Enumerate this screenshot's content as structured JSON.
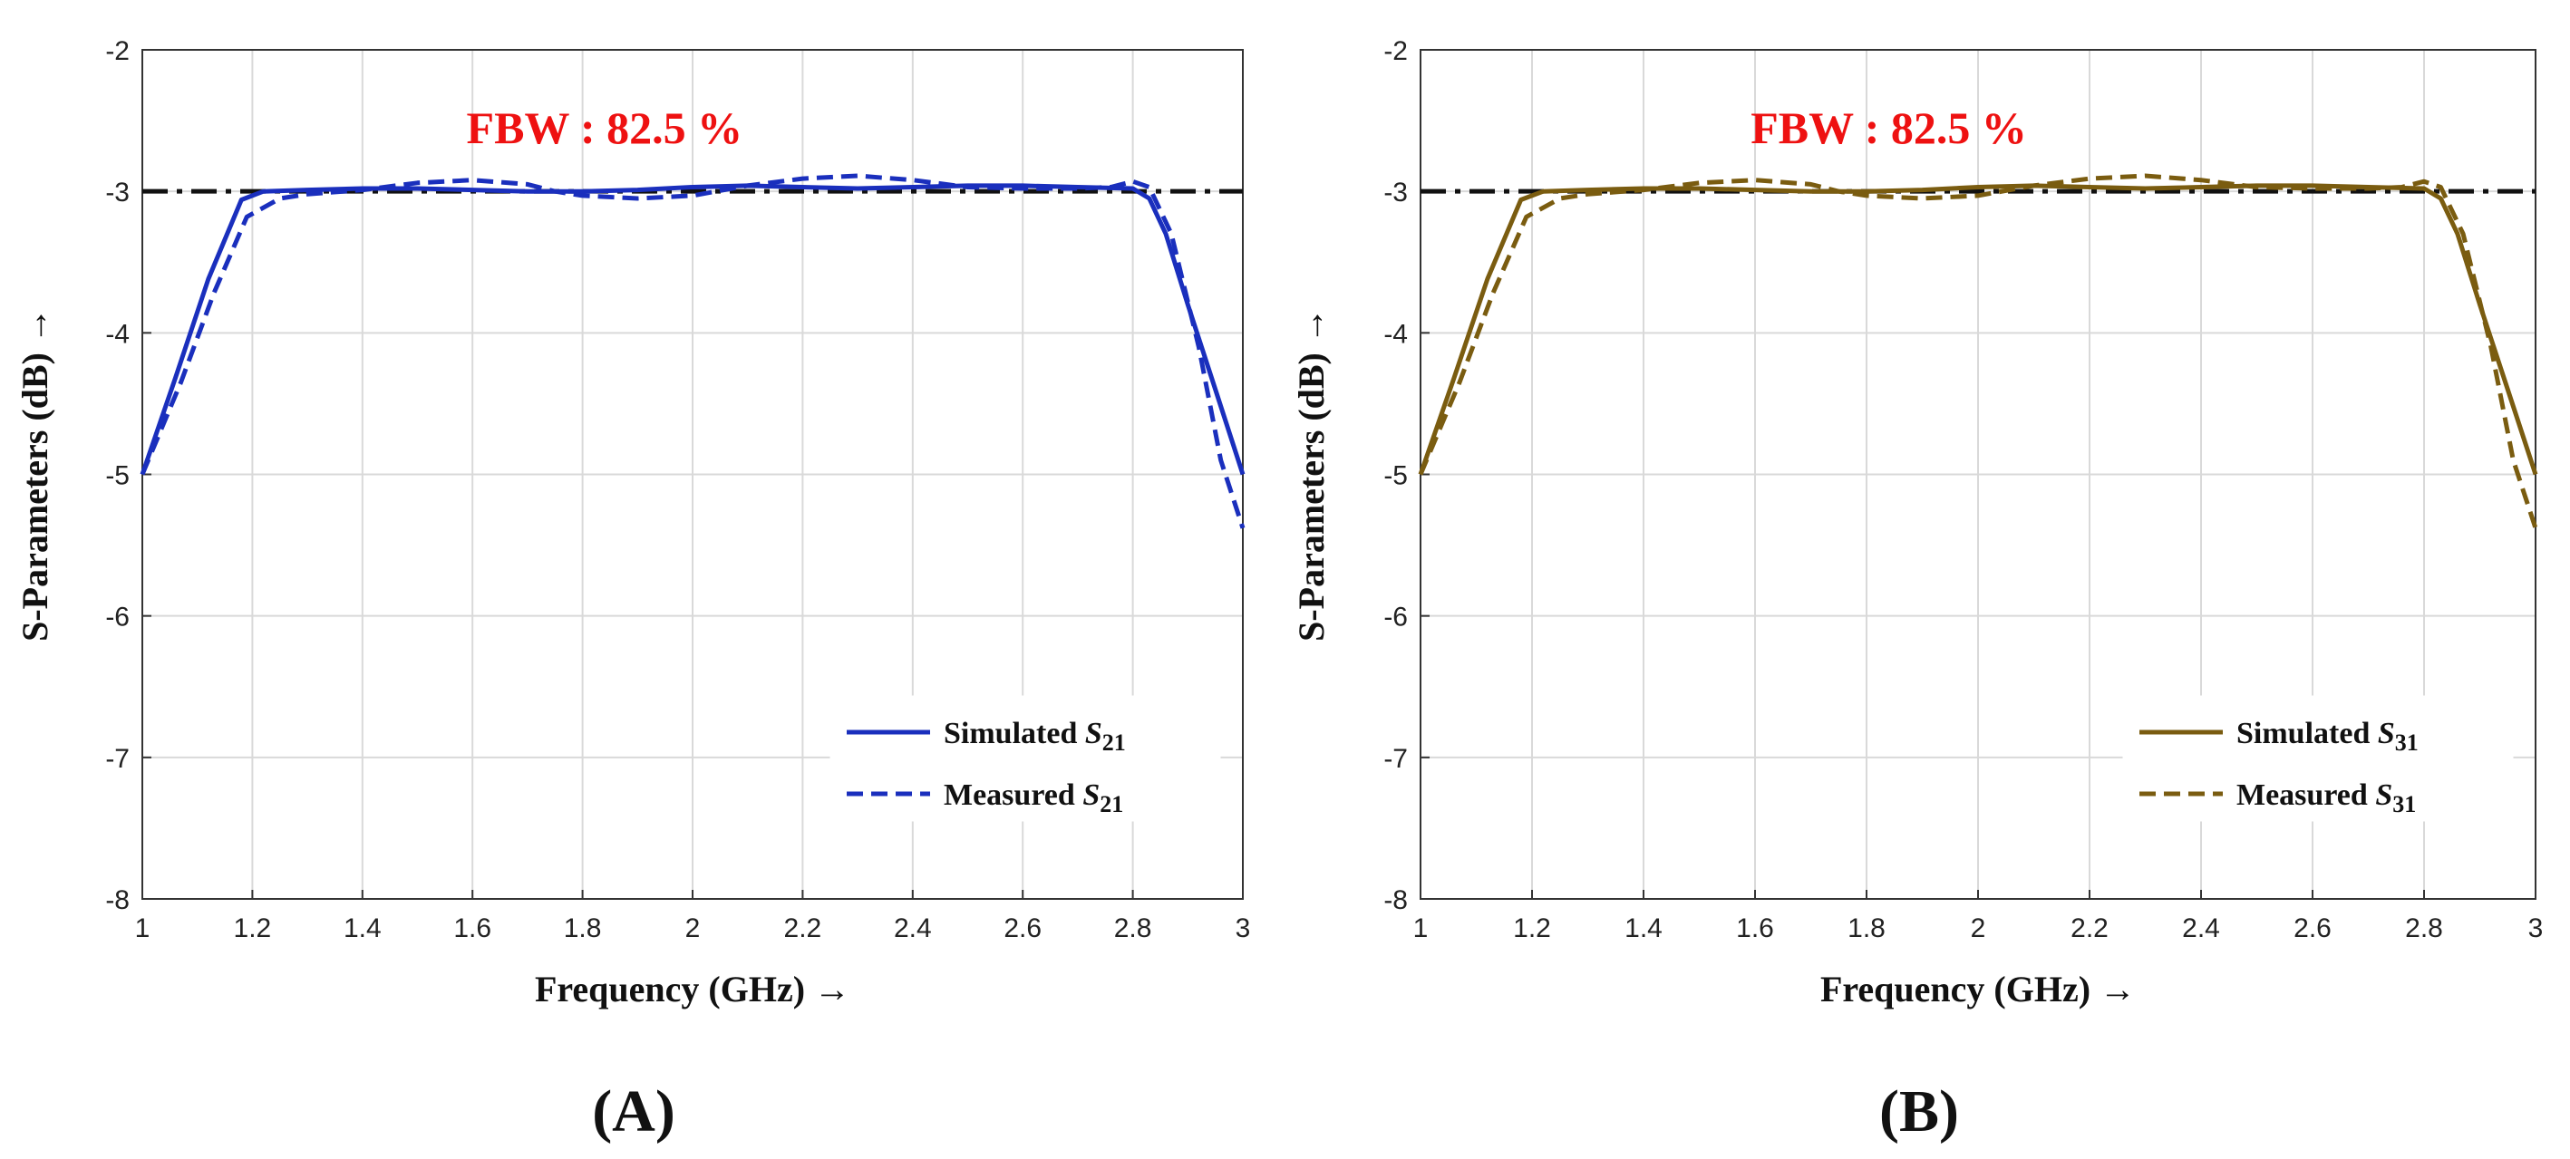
{
  "chart_data": [
    {
      "panel": "(A)",
      "type": "line",
      "xlabel": "Frequency (GHz) →",
      "ylabel": "S-Parameters (dB) →",
      "xlim": [
        1,
        3
      ],
      "ylim": [
        -8,
        -2
      ],
      "xticks": [
        "1",
        "1.2",
        "1.4",
        "1.6",
        "1.8",
        "2",
        "2.2",
        "2.4",
        "2.6",
        "2.8",
        "3"
      ],
      "yticks": [
        "-2",
        "-3",
        "-4",
        "-5",
        "-6",
        "-7",
        "-8"
      ],
      "grid": true,
      "legend_position": "bottom-right",
      "annotation": "FBW : 82.5 %",
      "reference_line": {
        "y": -3,
        "style": "dash-dot",
        "color": "#111111"
      },
      "series": [
        {
          "name": "Simulated S21",
          "legend_main": "Simulated ",
          "legend_sub": "21",
          "style": "solid",
          "color": "#1a2fbd",
          "x": [
            1.0,
            1.06,
            1.12,
            1.18,
            1.22,
            1.3,
            1.4,
            1.5,
            1.6,
            1.7,
            1.8,
            1.9,
            2.0,
            2.1,
            2.2,
            2.3,
            2.4,
            2.5,
            2.6,
            2.7,
            2.8,
            2.83,
            2.86,
            2.9,
            2.95,
            3.0
          ],
          "y": [
            -5.0,
            -4.32,
            -3.62,
            -3.06,
            -3.0,
            -2.99,
            -2.98,
            -2.98,
            -2.99,
            -3.0,
            -3.0,
            -2.99,
            -2.97,
            -2.96,
            -2.97,
            -2.98,
            -2.97,
            -2.96,
            -2.96,
            -2.97,
            -2.98,
            -3.05,
            -3.3,
            -3.8,
            -4.4,
            -5.0
          ]
        },
        {
          "name": "Measured S21",
          "legend_main": "Measured ",
          "legend_sub": "21",
          "style": "dashed",
          "color": "#1a2fbd",
          "x": [
            1.0,
            1.07,
            1.13,
            1.19,
            1.25,
            1.3,
            1.4,
            1.5,
            1.6,
            1.7,
            1.75,
            1.8,
            1.9,
            2.0,
            2.1,
            2.2,
            2.3,
            2.4,
            2.5,
            2.6,
            2.7,
            2.76,
            2.8,
            2.83,
            2.87,
            2.92,
            2.96,
            3.0
          ],
          "y": [
            -5.0,
            -4.35,
            -3.72,
            -3.18,
            -3.05,
            -3.02,
            -2.99,
            -2.94,
            -2.92,
            -2.95,
            -3.0,
            -3.03,
            -3.05,
            -3.03,
            -2.96,
            -2.91,
            -2.89,
            -2.92,
            -2.97,
            -2.98,
            -2.98,
            -2.97,
            -2.93,
            -2.97,
            -3.3,
            -4.1,
            -4.9,
            -5.38
          ]
        }
      ]
    },
    {
      "panel": "(B)",
      "type": "line",
      "xlabel": "Frequency (GHz) →",
      "ylabel": "S-Parameters (dB) →",
      "xlim": [
        1,
        3
      ],
      "ylim": [
        -8,
        -2
      ],
      "xticks": [
        "1",
        "1.2",
        "1.4",
        "1.6",
        "1.8",
        "2",
        "2.2",
        "2.4",
        "2.6",
        "2.8",
        "3"
      ],
      "yticks": [
        "-2",
        "-3",
        "-4",
        "-5",
        "-6",
        "-7",
        "-8"
      ],
      "grid": true,
      "legend_position": "bottom-right",
      "annotation": "FBW : 82.5 %",
      "reference_line": {
        "y": -3,
        "style": "dash-dot",
        "color": "#111111"
      },
      "series": [
        {
          "name": "Simulated S31",
          "legend_main": "Simulated ",
          "legend_sub": "31",
          "style": "solid",
          "color": "#7a5c10",
          "x": [
            1.0,
            1.06,
            1.12,
            1.18,
            1.22,
            1.3,
            1.4,
            1.5,
            1.6,
            1.7,
            1.8,
            1.9,
            2.0,
            2.1,
            2.2,
            2.3,
            2.4,
            2.5,
            2.6,
            2.7,
            2.8,
            2.83,
            2.86,
            2.9,
            2.95,
            3.0
          ],
          "y": [
            -5.0,
            -4.32,
            -3.62,
            -3.06,
            -3.0,
            -2.99,
            -2.98,
            -2.98,
            -2.99,
            -3.0,
            -3.0,
            -2.99,
            -2.97,
            -2.96,
            -2.97,
            -2.98,
            -2.97,
            -2.96,
            -2.96,
            -2.97,
            -2.98,
            -3.05,
            -3.3,
            -3.8,
            -4.4,
            -5.0
          ]
        },
        {
          "name": "Measured S31",
          "legend_main": "Measured ",
          "legend_sub": "31",
          "style": "dashed",
          "color": "#7a5c10",
          "x": [
            1.0,
            1.07,
            1.13,
            1.19,
            1.25,
            1.3,
            1.4,
            1.5,
            1.6,
            1.7,
            1.75,
            1.8,
            1.9,
            2.0,
            2.1,
            2.2,
            2.3,
            2.4,
            2.5,
            2.6,
            2.7,
            2.76,
            2.8,
            2.83,
            2.87,
            2.92,
            2.96,
            3.0
          ],
          "y": [
            -5.0,
            -4.35,
            -3.72,
            -3.18,
            -3.05,
            -3.02,
            -2.99,
            -2.94,
            -2.92,
            -2.95,
            -3.0,
            -3.03,
            -3.05,
            -3.03,
            -2.96,
            -2.91,
            -2.89,
            -2.92,
            -2.97,
            -2.98,
            -2.98,
            -2.97,
            -2.93,
            -2.97,
            -3.3,
            -4.1,
            -4.9,
            -5.38
          ]
        }
      ]
    }
  ]
}
